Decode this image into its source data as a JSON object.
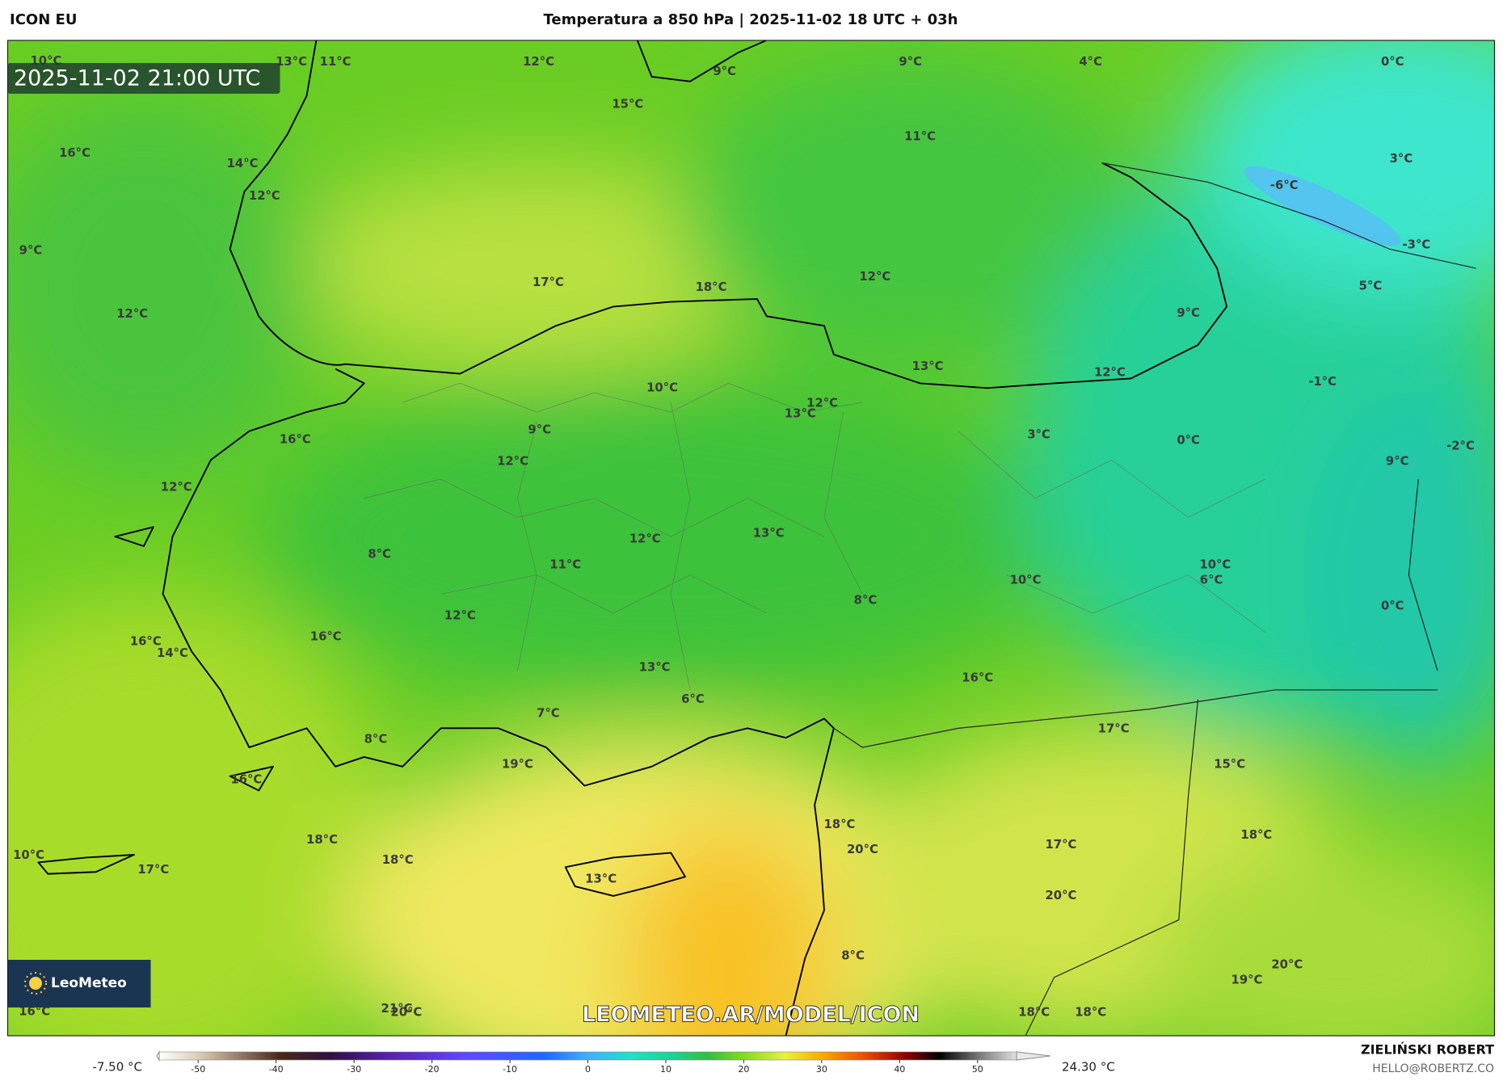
{
  "header": {
    "model": "ICON EU",
    "title": "Temperatura a 850 hPa | 2025-11-02 18 UTC + 03h"
  },
  "valid_time": "2025-11-02 21:00 UTC",
  "watermark": "LEOMETEO.AR/MODEL/ICON",
  "logo": "LeoMeteo",
  "map_labels": [
    "10°C",
    "13°C",
    "11°C",
    "12°C",
    "9°C",
    "9°C",
    "4°C",
    "0°C",
    "15°C",
    "11°C",
    "16°C",
    "14°C",
    "3°C",
    "-6°C",
    "12°C",
    "9°C",
    "-3°C",
    "17°C",
    "18°C",
    "12°C",
    "5°C",
    "12°C",
    "9°C",
    "13°C",
    "12°C",
    "-1°C",
    "10°C",
    "12°C",
    "13°C",
    "9°C",
    "3°C",
    "0°C",
    "-2°C",
    "16°C",
    "12°C",
    "9°C",
    "12°C",
    "12°C",
    "13°C",
    "11°C",
    "8°C",
    "10°C",
    "10°C",
    "6°C",
    "8°C",
    "0°C",
    "12°C",
    "16°C",
    "16°C",
    "14°C",
    "13°C",
    "16°C",
    "6°C",
    "7°C",
    "17°C",
    "8°C",
    "19°C",
    "15°C",
    "16°C",
    "18°C",
    "18°C",
    "18°C",
    "20°C",
    "17°C",
    "10°C",
    "18°C",
    "17°C",
    "13°C",
    "20°C",
    "8°C",
    "20°C",
    "19°C",
    "16°C",
    "21°C",
    "20°C",
    "18°C",
    "18°C"
  ],
  "colorbar": {
    "min_label": "-7.50 °C",
    "max_label": "24.30 °C",
    "lim": [
      -55,
      55
    ],
    "ticks": [
      -50,
      -40,
      -30,
      -20,
      -10,
      0,
      10,
      20,
      30,
      40,
      50
    ]
  },
  "author": {
    "name": "ZIELIŃSKI ROBERT",
    "email": "HELLO@ROBERTZ.CO"
  }
}
